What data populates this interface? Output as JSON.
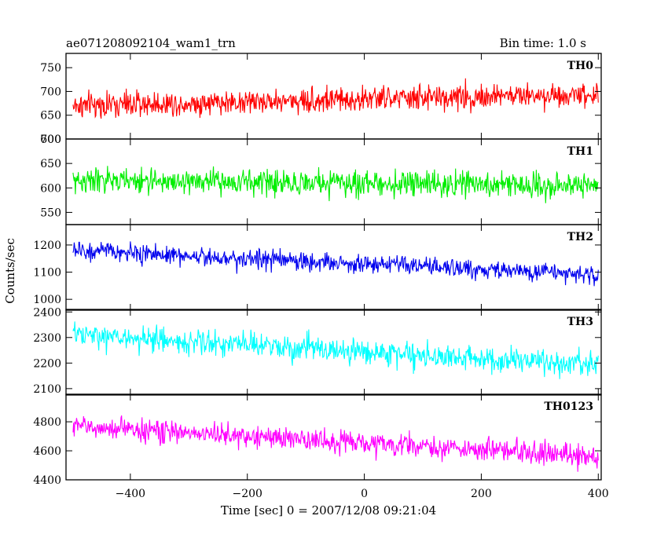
{
  "header": {
    "title": "ae071208092104_wam1_trn",
    "bin_time": "Bin time: 1.0 s"
  },
  "chart_data": {
    "type": "line",
    "xlabel": "Time [sec] 0 = 2007/12/08 09:21:04",
    "ylabel": "Counts/sec",
    "xlim": [
      -510,
      405
    ],
    "x_range": [
      -498,
      400
    ],
    "x_ticks": [
      -400,
      -200,
      0,
      200,
      400
    ],
    "x_tick_labels": [
      "−400",
      "−200",
      "0",
      "200",
      "400"
    ],
    "panels": [
      {
        "name": "TH0",
        "color": "#ff0000",
        "ylim": [
          600,
          780
        ],
        "y_ticks": [
          600,
          650,
          700,
          750
        ],
        "y_tick_labels": [
          "600",
          "650",
          "700",
          "750"
        ],
        "trend_start": 670,
        "trend_end": 695,
        "noise": 26
      },
      {
        "name": "TH1",
        "color": "#00ee00",
        "ylim": [
          525,
          700
        ],
        "y_ticks": [
          550,
          600,
          650,
          700
        ],
        "y_tick_labels": [
          "550",
          "600",
          "650",
          "700"
        ],
        "trend_start": 615,
        "trend_end": 605,
        "noise": 25
      },
      {
        "name": "TH2",
        "color": "#0000ee",
        "ylim": [
          960,
          1275
        ],
        "y_ticks": [
          1000,
          1100,
          1200
        ],
        "y_tick_labels": [
          "1000",
          "1100",
          "1200"
        ],
        "trend_start": 1180,
        "trend_end": 1090,
        "noise": 34
      },
      {
        "name": "TH3",
        "color": "#00ffff",
        "ylim": [
          2075,
          2410
        ],
        "y_ticks": [
          2100,
          2200,
          2300,
          2400
        ],
        "y_tick_labels": [
          "2100",
          "2200",
          "2300",
          "2400"
        ],
        "trend_start": 2310,
        "trend_end": 2190,
        "noise": 48
      },
      {
        "name": "TH0123",
        "color": "#ff00ff",
        "ylim": [
          4400,
          4990
        ],
        "y_ticks": [
          4400,
          4600,
          4800
        ],
        "y_tick_labels": [
          "4400",
          "4600",
          "4800"
        ],
        "trend_start": 4770,
        "trend_end": 4560,
        "noise": 75
      }
    ]
  }
}
